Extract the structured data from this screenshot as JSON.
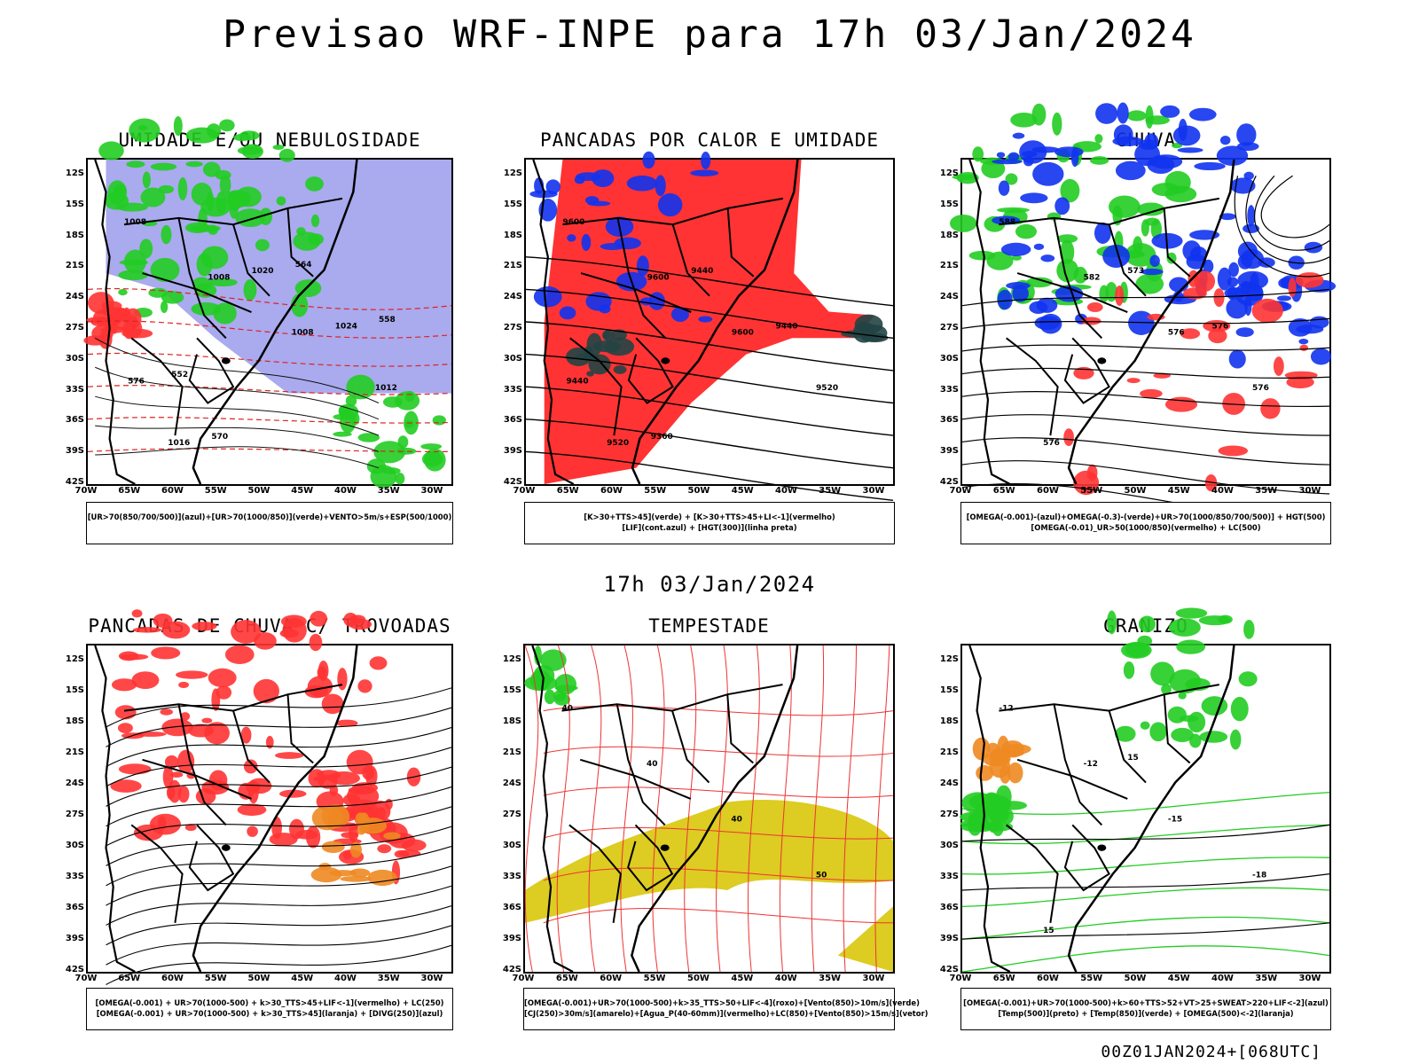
{
  "page_title": "Previsao WRF-INPE  para 17h 03/Jan/2024",
  "mid_title": "17h 03/Jan/2024",
  "footer": "00Z01JAN2024+[068UTC]",
  "axes": {
    "lat_labels": [
      "12S",
      "15S",
      "18S",
      "21S",
      "24S",
      "27S",
      "30S",
      "33S",
      "36S",
      "39S",
      "42S"
    ],
    "lon_labels": [
      "70W",
      "65W",
      "60W",
      "55W",
      "50W",
      "45W",
      "40W",
      "35W",
      "30W"
    ]
  },
  "colors": {
    "blue_shade": "#aaaaee",
    "green": "#22cc22",
    "red": "#ff3333",
    "dark_teal": "#224444",
    "blue": "#1133ee",
    "yellow": "#ddcc22",
    "orange": "#ee8822",
    "black": "#000000"
  },
  "panels": [
    {
      "title": "UMIDADE E/OU NEBULOSIDADE",
      "legend": [
        "[UR>70(850/700/500)](azul)+[UR>70(1000/850)](verde)+VENTO>5m/s+ESP(500/1000)"
      ],
      "contour_labels": [
        "1008",
        "1008",
        "1008",
        "1012",
        "1016",
        "1020",
        "1024",
        "576",
        "570",
        "564",
        "558",
        "552"
      ]
    },
    {
      "title": "PANCADAS POR CALOR E UMIDADE",
      "legend": [
        "[K>30+TTS>45](verde)  +  [K>30+TTS>45+LI<-1](vermelho)",
        "[LIF](cont.azul)  +  [HGT(300)](linha preta)"
      ],
      "contour_labels": [
        "9600",
        "9600",
        "9600",
        "9520",
        "9520",
        "9440",
        "9440",
        "9440",
        "9360"
      ]
    },
    {
      "title": "CHUVA",
      "legend": [
        "[OMEGA(-0.001)-(azul)+OMEGA(-0.3)-(verde)+UR>70(1000/850/700/500)]  +  HGT(500)",
        "[OMEGA(-0.01)_UR>50(1000/850)(vermelho)  +  LC(500)"
      ],
      "contour_labels": [
        "588",
        "582",
        "576",
        "576",
        "576",
        "573",
        "576"
      ]
    },
    {
      "title": "PANCADAS DE CHUVA C/ TROVOADAS",
      "legend": [
        "[OMEGA(-0.001)  +  UR>70(1000-500)  +  k>30_TTS>45+LIF<-1](vermelho)  +  LC(250)",
        "[OMEGA(-0.001)  +  UR>70(1000-500)  +  k>30_TTS>45](laranja)  +  [DIVG(250)](azul)"
      ],
      "contour_labels": []
    },
    {
      "title": "TEMPESTADE",
      "legend": [
        "[OMEGA(-0.001)+UR>70(1000-500)+k>35_TTS>50+LIF<-4](roxo)+[Vento(850)>10m/s](verde)",
        "[CJ(250)>30m/s](amarelo)+[Agua_P(40-60mm)](vermelho)+LC(850)+[Vento(850)>15m/s](vetor)"
      ],
      "contour_labels": [
        "40",
        "40",
        "40",
        "50"
      ]
    },
    {
      "title": "GRANIZO",
      "legend": [
        "[OMEGA(-0.001)+UR>70(1000-500)+k>60+TTS>52+VT>25+SWEAT>220+LIF<-2](azul)",
        "[Temp(500)](preto)  +  [Temp(850)](verde)  +  [OMEGA(500)<-2](laranja)"
      ],
      "contour_labels": [
        "-12",
        "-12",
        "-15",
        "-18",
        "15",
        "15"
      ]
    }
  ]
}
